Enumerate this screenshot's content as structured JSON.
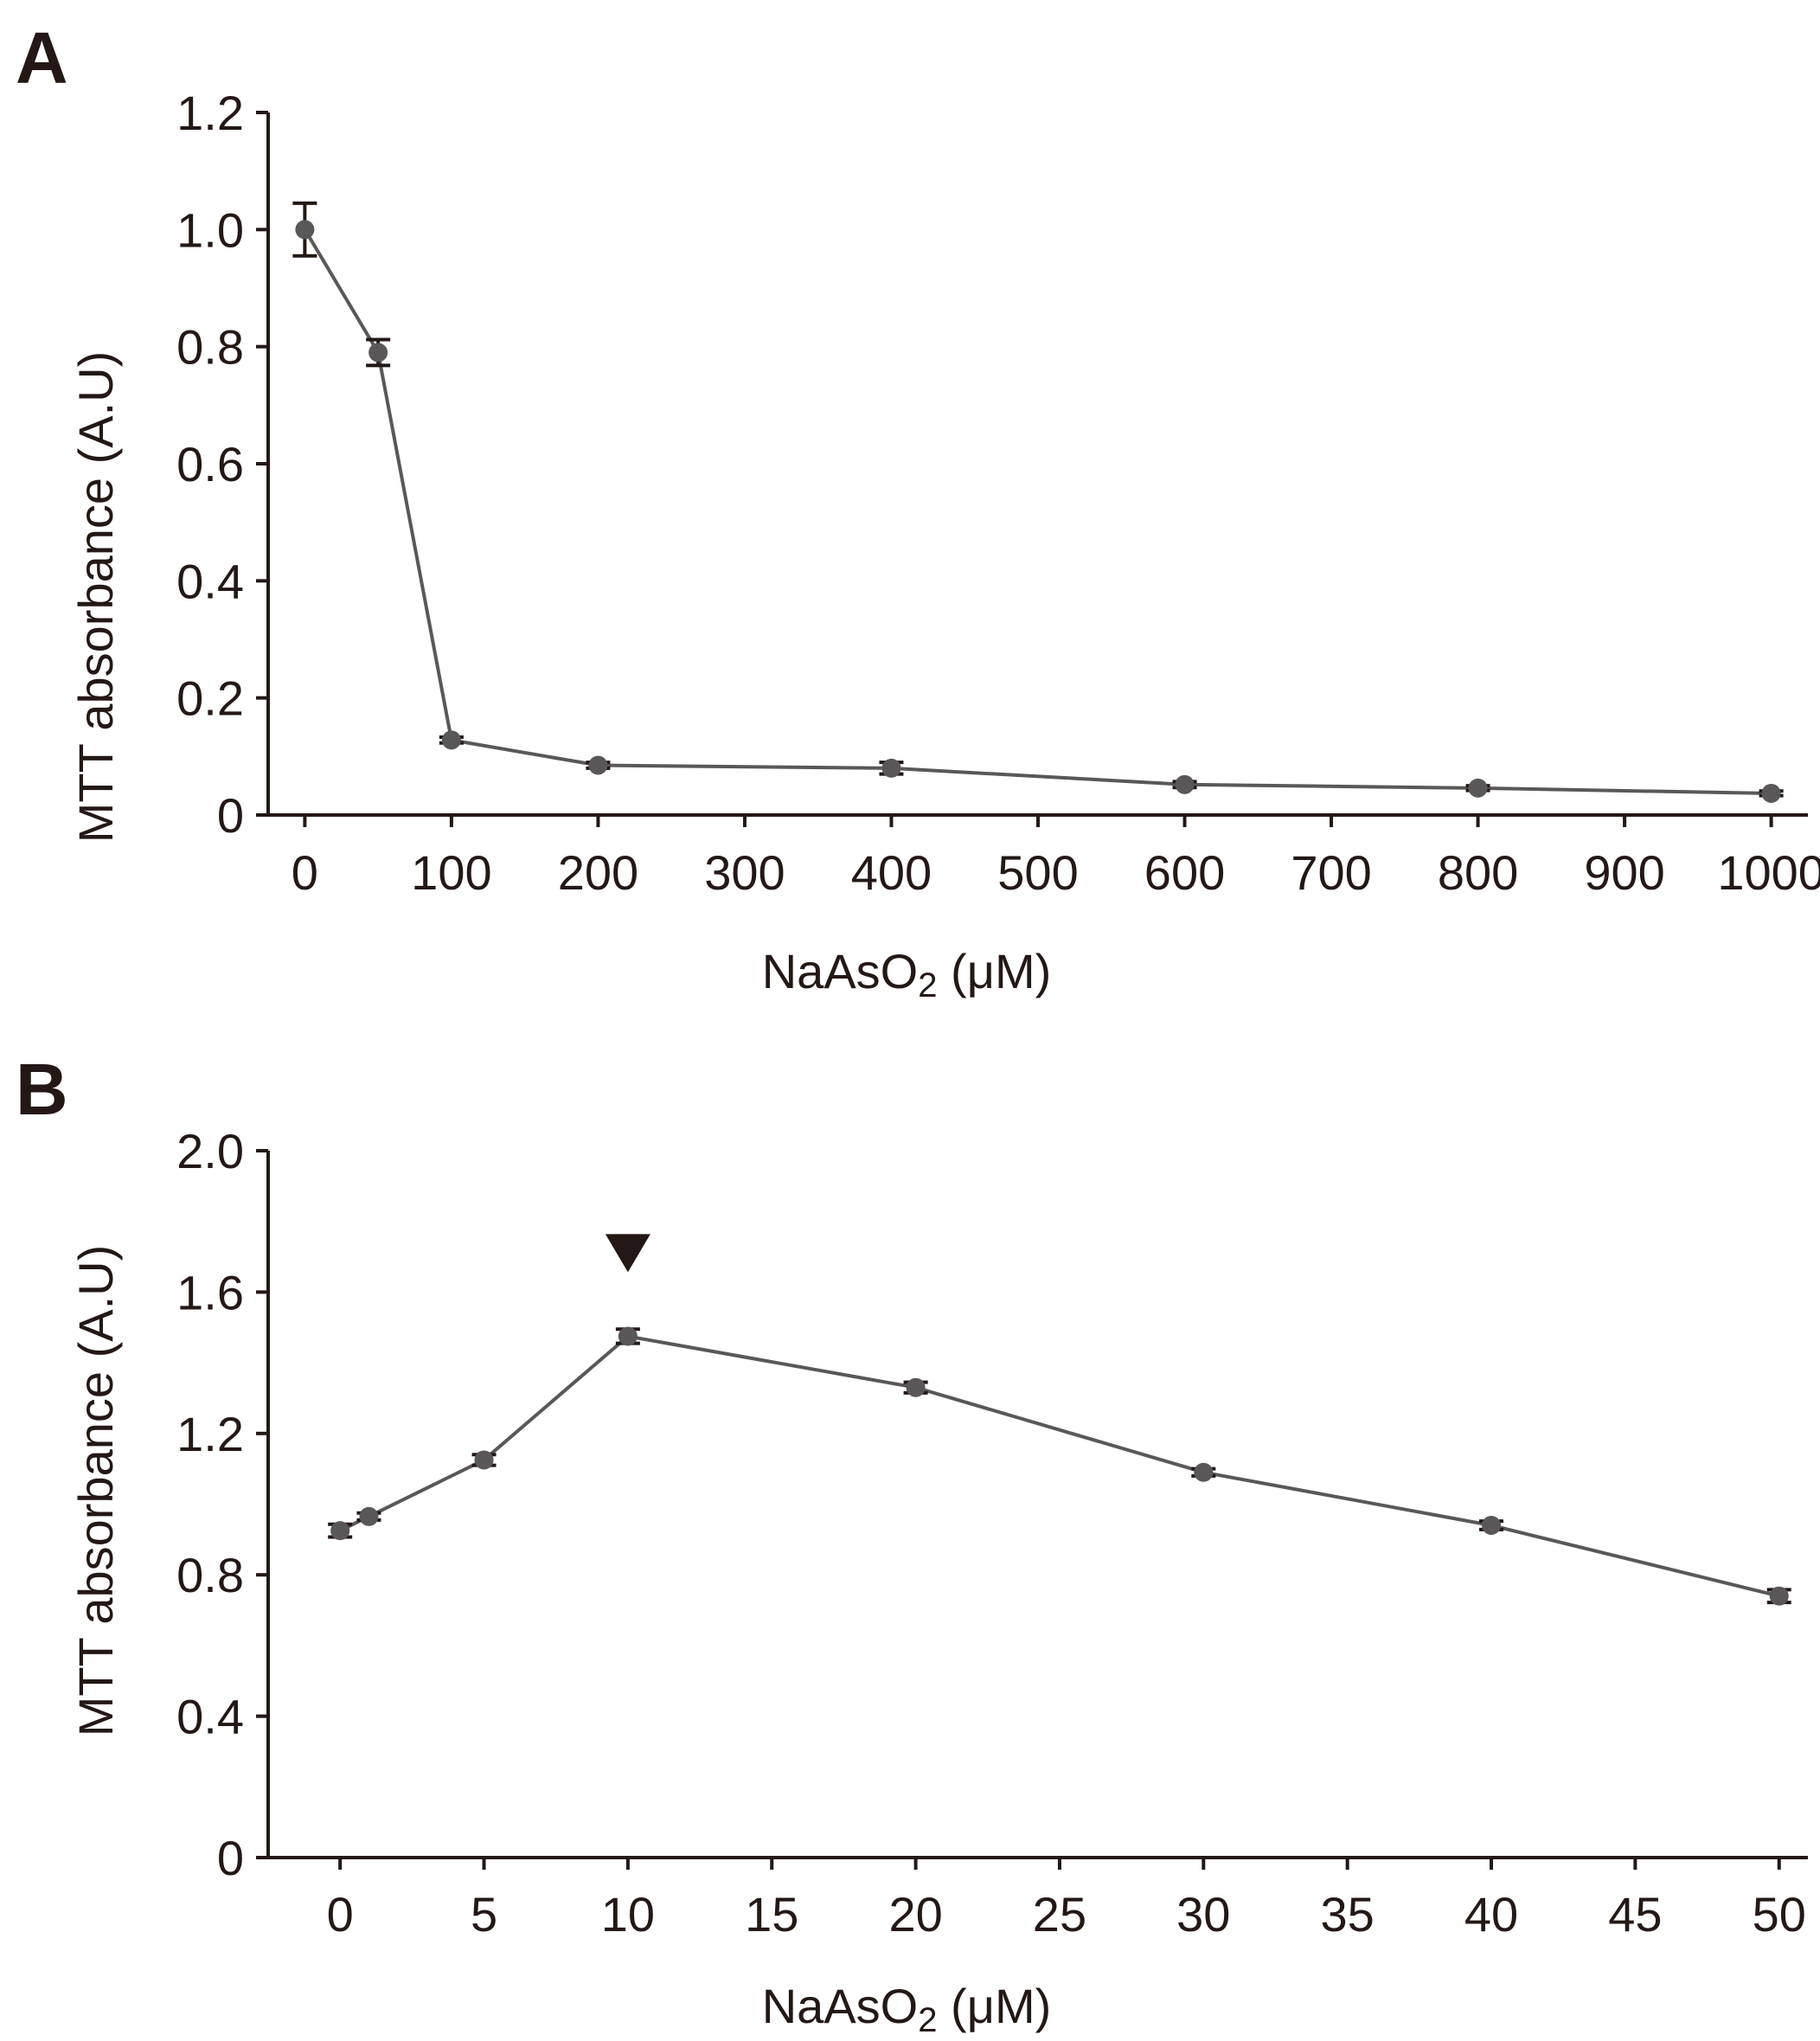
{
  "chart_data": [
    {
      "type": "line",
      "panel": "A",
      "xlabel": "NaAsO",
      "xlabel_sub": "2",
      "xlabel_unit": " (μM)",
      "ylabel": "MTT absorbance (A.U)",
      "xlim": [
        -25,
        1025
      ],
      "ylim": [
        0,
        1.2
      ],
      "xticks": [
        0,
        100,
        200,
        300,
        400,
        500,
        600,
        700,
        800,
        900,
        1000
      ],
      "xtick_labels": [
        "0",
        "100",
        "200",
        "300",
        "400",
        "500",
        "600",
        "700",
        "800",
        "900",
        "1000"
      ],
      "yticks": [
        0,
        0.2,
        0.4,
        0.6,
        0.8,
        1.0,
        1.2
      ],
      "ytick_labels": [
        "0",
        "0.2",
        "0.4",
        "0.6",
        "0.8",
        "1.0",
        "1.2"
      ],
      "series": [
        {
          "name": "MTT",
          "x": [
            0,
            50,
            100,
            200,
            400,
            600,
            800,
            1000
          ],
          "y": [
            1.0,
            0.79,
            0.128,
            0.085,
            0.08,
            0.052,
            0.046,
            0.037
          ],
          "error": [
            0.045,
            0.022,
            0.005,
            0.005,
            0.01,
            0.005,
            0.004,
            0.004
          ]
        }
      ],
      "annotations": []
    },
    {
      "type": "line",
      "panel": "B",
      "xlabel": "NaAsO",
      "xlabel_sub": "2",
      "xlabel_unit": " (μM)",
      "ylabel": "MTT absorbance (A.U)",
      "xlim": [
        -2.5,
        51
      ],
      "ylim": [
        0,
        2.0
      ],
      "xticks": [
        0,
        5,
        10,
        15,
        20,
        25,
        30,
        35,
        40,
        45,
        50
      ],
      "xtick_labels": [
        "0",
        "5",
        "10",
        "15",
        "20",
        "25",
        "30",
        "35",
        "40",
        "45",
        "50"
      ],
      "yticks": [
        0,
        0.4,
        0.8,
        1.2,
        1.6,
        2.0
      ],
      "ytick_labels": [
        "0",
        "0.4",
        "0.8",
        "1.2",
        "1.6",
        "2.0"
      ],
      "series": [
        {
          "name": "MTT",
          "x": [
            0,
            1,
            5,
            10,
            20,
            30,
            40,
            50
          ],
          "y": [
            0.925,
            0.965,
            1.125,
            1.475,
            1.33,
            1.09,
            0.94,
            0.74
          ],
          "error": [
            0.018,
            0.01,
            0.015,
            0.02,
            0.015,
            0.01,
            0.012,
            0.018
          ]
        }
      ],
      "annotations": [
        {
          "type": "triangle-down",
          "x": 10,
          "y": 1.72
        }
      ]
    }
  ]
}
